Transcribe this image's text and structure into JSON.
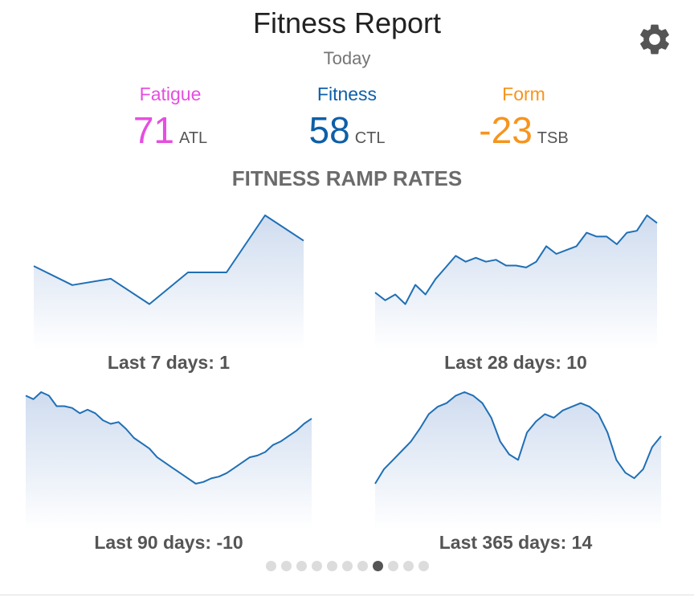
{
  "header": {
    "title": "Fitness Report",
    "subtitle": "Today",
    "settings_icon": "gear-icon"
  },
  "metrics": [
    {
      "label": "Fatigue",
      "value": "71",
      "suffix": "ATL",
      "color": "#e64ee0"
    },
    {
      "label": "Fitness",
      "value": "58",
      "suffix": "CTL",
      "color": "#0d5fa8"
    },
    {
      "label": "Form",
      "value": "-23",
      "suffix": "TSB",
      "color": "#f7941d"
    }
  ],
  "section_title": "FITNESS RAMP RATES",
  "charts": {
    "c7": {
      "label": "Last 7 days: 1",
      "values": [
        50,
        47,
        48,
        44,
        49,
        49,
        58,
        54
      ]
    },
    "c28": {
      "label": "Last 28 days: 10",
      "values": [
        31,
        27,
        30,
        25,
        35,
        30,
        38,
        44,
        50,
        47,
        49,
        47,
        48,
        45,
        45,
        44,
        47,
        55,
        51,
        53,
        55,
        62,
        60,
        60,
        56,
        62,
        63,
        71,
        67
      ]
    },
    "c90": {
      "label": "Last 90 days: -10",
      "values": [
        68,
        66,
        70,
        68,
        62,
        62,
        61,
        58,
        60,
        58,
        54,
        52,
        53,
        49,
        44,
        41,
        38,
        33,
        30,
        27,
        24,
        21,
        18,
        19,
        21,
        22,
        24,
        27,
        30,
        33,
        34,
        36,
        40,
        42,
        45,
        48,
        52,
        55
      ]
    },
    "c365": {
      "label": "Last 365 days: 14",
      "values": [
        32,
        40,
        45,
        50,
        55,
        62,
        70,
        74,
        76,
        80,
        82,
        80,
        76,
        68,
        55,
        48,
        45,
        60,
        66,
        70,
        68,
        72,
        74,
        76,
        74,
        70,
        60,
        45,
        38,
        35,
        40,
        52,
        58
      ]
    }
  },
  "pager": {
    "count": 11,
    "active": 7
  }
}
